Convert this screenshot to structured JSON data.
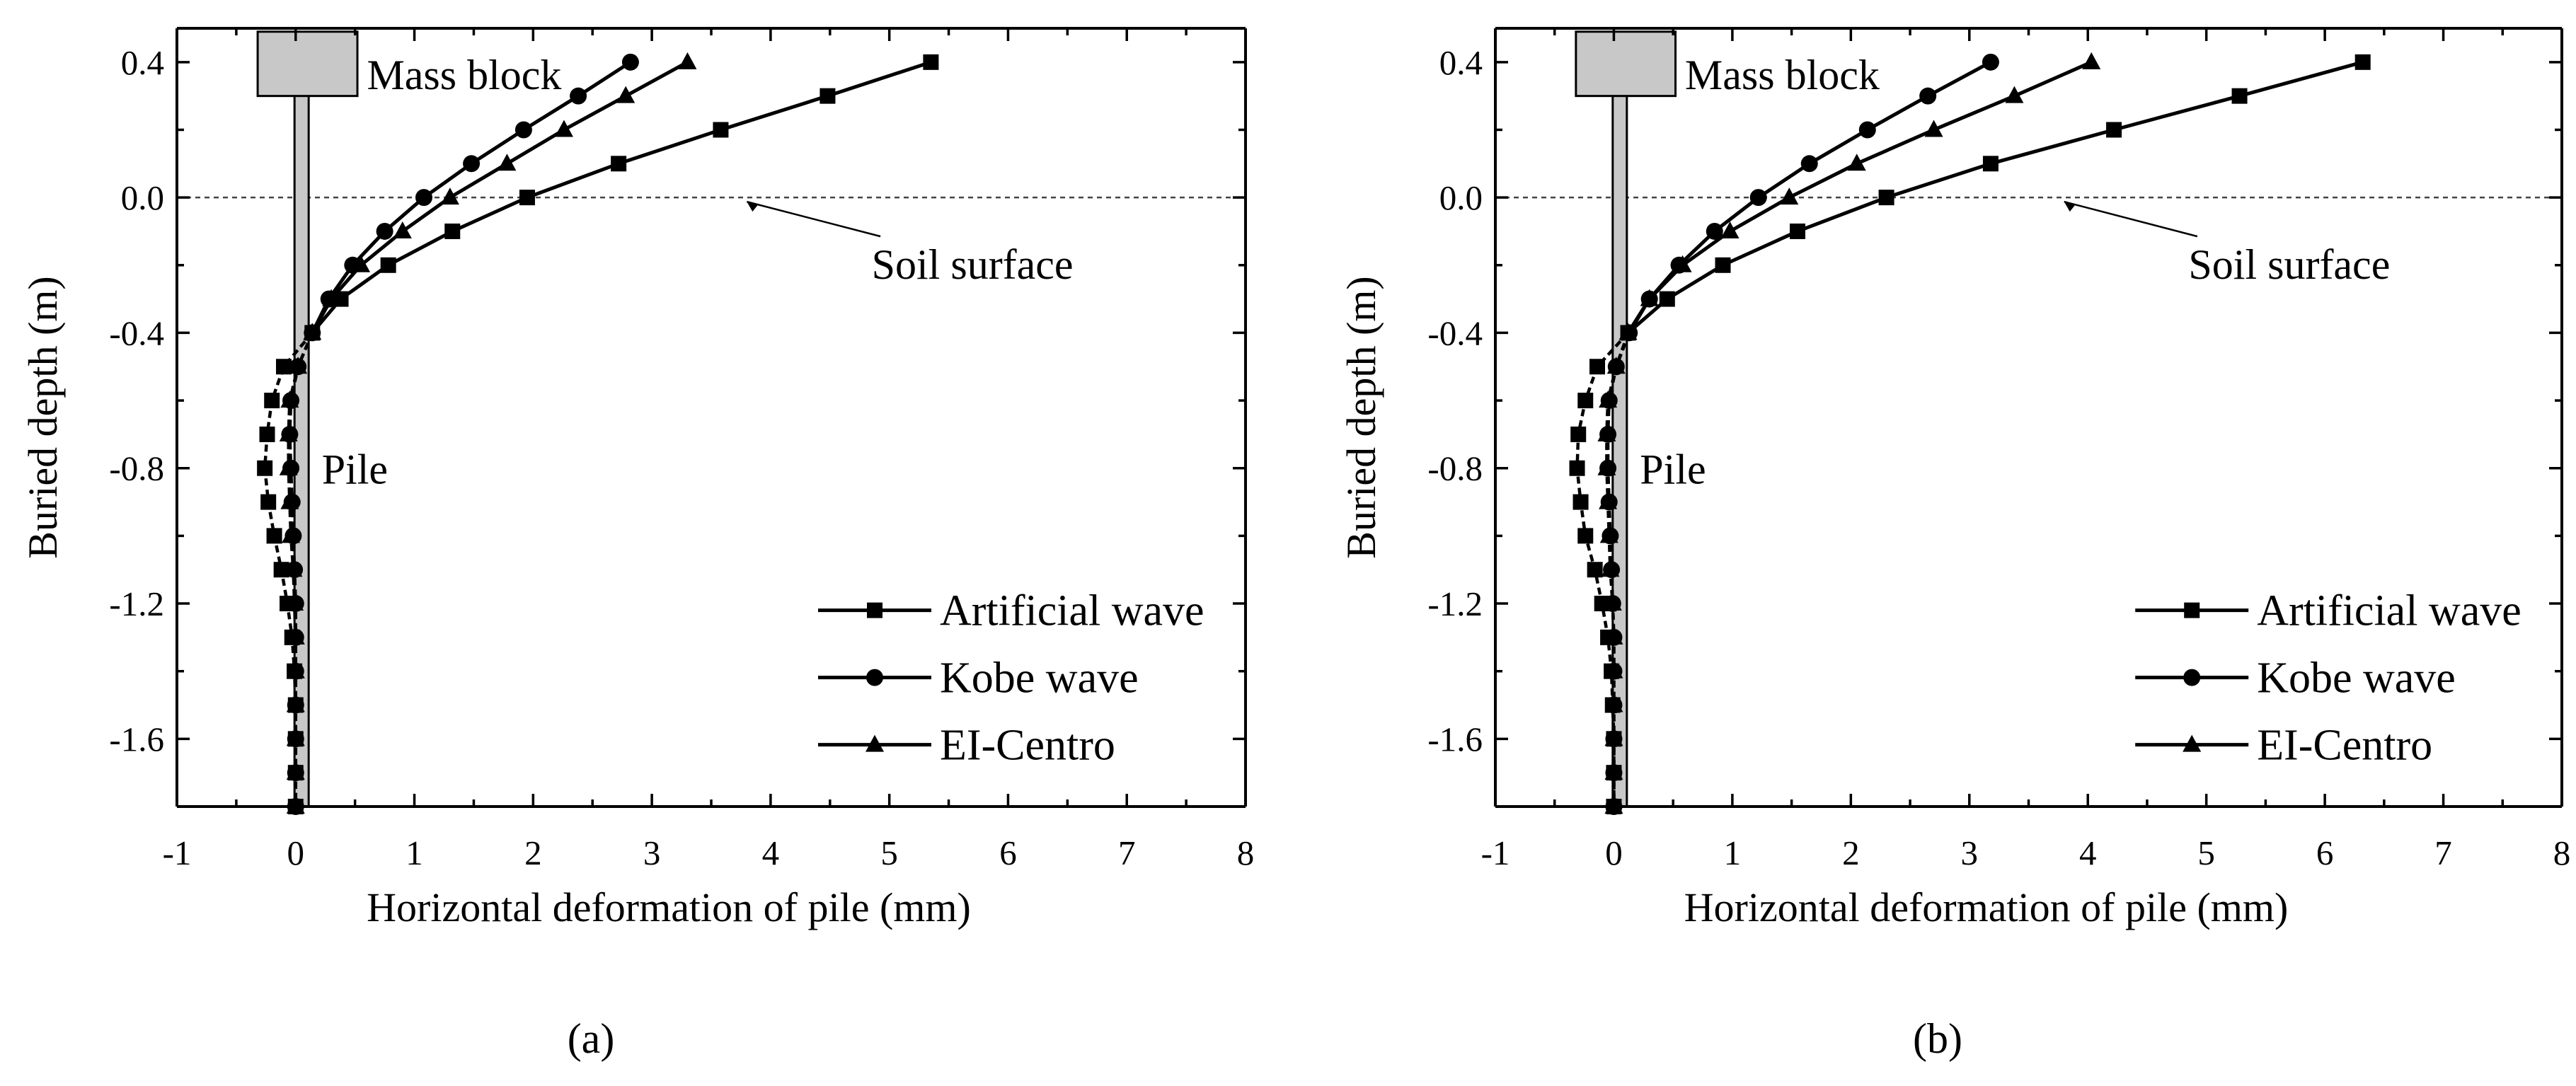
{
  "chart_data": [
    {
      "panel_label": "(a)",
      "type": "line",
      "xlabel": "Horizontal deformation of pile (mm)",
      "ylabel": "Buried depth (m)",
      "xlim": [
        -1,
        8
      ],
      "ylim": [
        -1.8,
        0.5
      ],
      "xticks": [
        -1,
        0,
        1,
        2,
        3,
        4,
        5,
        6,
        7,
        8
      ],
      "yticks": [
        0.4,
        0.0,
        -0.4,
        -0.8,
        -1.2,
        -1.6
      ],
      "annotations": {
        "mass_block": "Mass block",
        "soil_surface": "Soil surface",
        "pile": "Pile"
      },
      "series": [
        {
          "name": "Artificial wave",
          "marker": "square",
          "x": [
            5.35,
            4.48,
            3.58,
            2.72,
            1.95,
            1.32,
            0.78,
            0.38,
            0.14,
            -0.1,
            -0.2,
            -0.24,
            -0.26,
            -0.23,
            -0.18,
            -0.12,
            -0.07,
            -0.03,
            -0.01,
            0.0,
            0.0,
            0.0,
            0.0
          ],
          "y": [
            0.4,
            0.3,
            0.2,
            0.1,
            0.0,
            -0.1,
            -0.2,
            -0.3,
            -0.4,
            -0.5,
            -0.6,
            -0.7,
            -0.8,
            -0.9,
            -1.0,
            -1.1,
            -1.2,
            -1.3,
            -1.4,
            -1.5,
            -1.6,
            -1.7,
            -1.8
          ]
        },
        {
          "name": "Kobe wave",
          "marker": "circle",
          "x": [
            2.82,
            2.38,
            1.92,
            1.48,
            1.08,
            0.75,
            0.48,
            0.28,
            0.14,
            0.02,
            -0.04,
            -0.05,
            -0.04,
            -0.03,
            -0.02,
            -0.01,
            0.0,
            0.0,
            0.0,
            0.0,
            0.0,
            0.0,
            0.0
          ],
          "y": [
            0.4,
            0.3,
            0.2,
            0.1,
            0.0,
            -0.1,
            -0.2,
            -0.3,
            -0.4,
            -0.5,
            -0.6,
            -0.7,
            -0.8,
            -0.9,
            -1.0,
            -1.1,
            -1.2,
            -1.3,
            -1.4,
            -1.5,
            -1.6,
            -1.7,
            -1.8
          ]
        },
        {
          "name": "EI-Centro",
          "marker": "triangle",
          "x": [
            3.3,
            2.78,
            2.26,
            1.78,
            1.3,
            0.9,
            0.55,
            0.3,
            0.14,
            0.02,
            -0.05,
            -0.06,
            -0.06,
            -0.05,
            -0.04,
            -0.02,
            -0.01,
            0.0,
            0.0,
            0.0,
            0.0,
            0.0,
            0.0
          ],
          "y": [
            0.4,
            0.3,
            0.2,
            0.1,
            0.0,
            -0.1,
            -0.2,
            -0.3,
            -0.4,
            -0.5,
            -0.6,
            -0.7,
            -0.8,
            -0.9,
            -1.0,
            -1.1,
            -1.2,
            -1.3,
            -1.4,
            -1.5,
            -1.6,
            -1.7,
            -1.8
          ]
        }
      ]
    },
    {
      "panel_label": "(b)",
      "type": "line",
      "xlabel": "Horizontal deformation of pile (mm)",
      "ylabel": "Buried depth (m)",
      "xlim": [
        -1,
        8
      ],
      "ylim": [
        -1.8,
        0.5
      ],
      "xticks": [
        -1,
        0,
        1,
        2,
        3,
        4,
        5,
        6,
        7,
        8
      ],
      "yticks": [
        0.4,
        0.0,
        -0.4,
        -0.8,
        -1.2,
        -1.6
      ],
      "annotations": {
        "mass_block": "Mass block",
        "soil_surface": "Soil surface",
        "pile": "Pile"
      },
      "series": [
        {
          "name": "Artificial wave",
          "marker": "square",
          "x": [
            6.32,
            5.28,
            4.22,
            3.18,
            2.3,
            1.55,
            0.92,
            0.45,
            0.12,
            -0.14,
            -0.24,
            -0.3,
            -0.31,
            -0.28,
            -0.24,
            -0.16,
            -0.1,
            -0.05,
            -0.02,
            -0.01,
            0.0,
            0.0,
            0.0
          ],
          "y": [
            0.4,
            0.3,
            0.2,
            0.1,
            0.0,
            -0.1,
            -0.2,
            -0.3,
            -0.4,
            -0.5,
            -0.6,
            -0.7,
            -0.8,
            -0.9,
            -1.0,
            -1.1,
            -1.2,
            -1.3,
            -1.4,
            -1.5,
            -1.6,
            -1.7,
            -1.8
          ]
        },
        {
          "name": "Kobe wave",
          "marker": "circle",
          "x": [
            3.18,
            2.65,
            2.14,
            1.65,
            1.22,
            0.85,
            0.55,
            0.3,
            0.13,
            0.02,
            -0.04,
            -0.05,
            -0.05,
            -0.04,
            -0.03,
            -0.02,
            -0.01,
            0.0,
            0.0,
            0.0,
            0.0,
            0.0,
            0.0
          ],
          "y": [
            0.4,
            0.3,
            0.2,
            0.1,
            0.0,
            -0.1,
            -0.2,
            -0.3,
            -0.4,
            -0.5,
            -0.6,
            -0.7,
            -0.8,
            -0.9,
            -1.0,
            -1.1,
            -1.2,
            -1.3,
            -1.4,
            -1.5,
            -1.6,
            -1.7,
            -1.8
          ]
        },
        {
          "name": "EI-Centro",
          "marker": "triangle",
          "x": [
            4.03,
            3.38,
            2.7,
            2.05,
            1.48,
            0.98,
            0.58,
            0.3,
            0.12,
            0.02,
            -0.05,
            -0.06,
            -0.06,
            -0.05,
            -0.04,
            -0.03,
            -0.01,
            0.0,
            0.0,
            0.0,
            0.0,
            0.0,
            0.0
          ],
          "y": [
            0.4,
            0.3,
            0.2,
            0.1,
            0.0,
            -0.1,
            -0.2,
            -0.3,
            -0.4,
            -0.5,
            -0.6,
            -0.7,
            -0.8,
            -0.9,
            -1.0,
            -1.1,
            -1.2,
            -1.3,
            -1.4,
            -1.5,
            -1.6,
            -1.7,
            -1.8
          ]
        }
      ]
    }
  ]
}
